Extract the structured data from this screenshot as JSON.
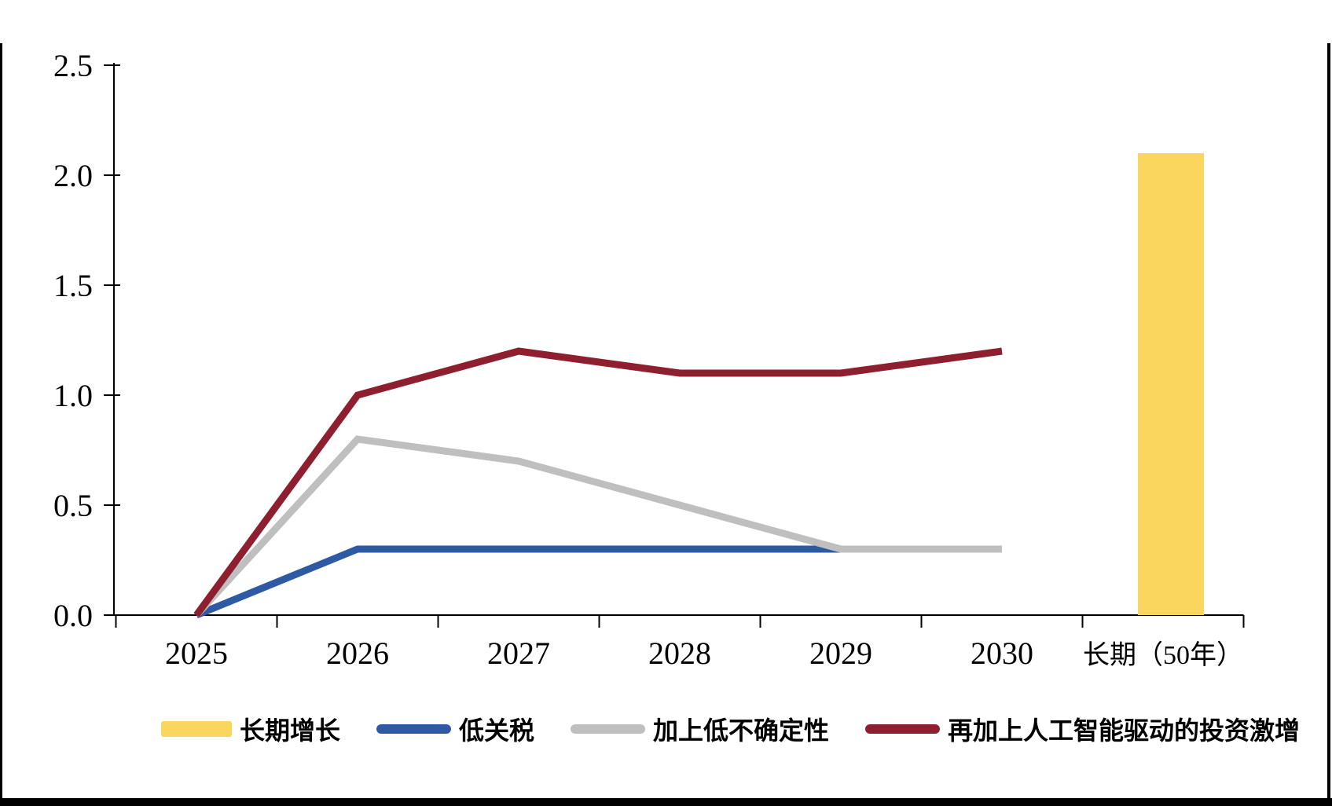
{
  "chart_data": {
    "type": "combo-bar-line",
    "title": "",
    "categories": [
      "2025",
      "2026",
      "2027",
      "2028",
      "2029",
      "2030",
      "长期（50年）"
    ],
    "y_ticks": [
      "0.0",
      "0.5",
      "1.0",
      "1.5",
      "2.0",
      "2.5"
    ],
    "ylim": [
      0,
      2.5
    ],
    "grid": false,
    "legend_position": "bottom",
    "bar_series": {
      "name": "长期增长",
      "category": "长期（50年）",
      "value": 2.1,
      "color": "#FAD65F"
    },
    "line_series": [
      {
        "name": "低关税",
        "color": "#2E5AA4",
        "values": [
          0,
          0.3,
          0.3,
          0.3,
          0.3,
          null,
          null
        ]
      },
      {
        "name": "加上低不确定性",
        "color": "#BFBFBF",
        "values": [
          0,
          0.8,
          0.7,
          0.5,
          0.3,
          0.3,
          null
        ]
      },
      {
        "name": "再加上人工智能驱动的投资激增",
        "color": "#8E1F2E",
        "values": [
          0,
          1.0,
          1.2,
          1.1,
          1.1,
          1.2,
          null
        ]
      }
    ]
  },
  "legend": {
    "items": [
      {
        "label": "长期增长",
        "color": "#FAD65F",
        "marker": "bar"
      },
      {
        "label": "低关税",
        "color": "#2E5AA4",
        "marker": "line"
      },
      {
        "label": "加上低不确定性",
        "color": "#BFBFBF",
        "marker": "line"
      },
      {
        "label": "再加上人工智能驱动的投资激增",
        "color": "#8E1F2E",
        "marker": "line"
      }
    ]
  },
  "frame": {
    "color": "#000000"
  }
}
